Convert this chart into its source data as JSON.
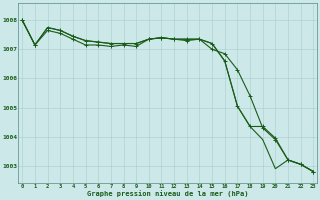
{
  "hours": [
    0,
    1,
    2,
    3,
    4,
    5,
    6,
    7,
    8,
    9,
    10,
    11,
    12,
    13,
    14,
    15,
    16,
    17,
    18,
    19,
    20,
    21,
    22,
    23
  ],
  "line1": [
    1008.0,
    1007.15,
    1007.65,
    1007.55,
    1007.35,
    1007.15,
    1007.15,
    1007.1,
    1007.15,
    1007.1,
    1007.35,
    1007.4,
    1007.35,
    1007.3,
    1007.35,
    1007.0,
    1006.85,
    1006.3,
    1005.4,
    1004.3,
    1003.9,
    1003.2,
    1003.05,
    1002.8
  ],
  "line2": [
    1008.0,
    1007.15,
    1007.75,
    1007.65,
    1007.45,
    1007.3,
    1007.25,
    1007.2,
    1007.2,
    1007.2,
    1007.35,
    1007.4,
    1007.35,
    1007.35,
    1007.35,
    1007.2,
    1006.6,
    1005.05,
    1004.35,
    1004.35,
    1003.95,
    1003.2,
    1003.05,
    1002.8
  ],
  "line3": [
    1008.0,
    1007.15,
    1007.75,
    1007.65,
    1007.45,
    1007.3,
    1007.25,
    1007.2,
    1007.2,
    1007.2,
    1007.35,
    1007.4,
    1007.35,
    1007.35,
    1007.35,
    1007.2,
    1006.6,
    1005.05,
    1004.35,
    1003.9,
    1002.9,
    1003.2,
    1003.05,
    1002.8
  ],
  "bg_color": "#cce8e8",
  "grid_color": "#aacccc",
  "line_color": "#1a5c1a",
  "ylabel_ticks": [
    1003,
    1004,
    1005,
    1006,
    1007,
    1008
  ],
  "xlabel": "Graphe pression niveau de la mer (hPa)",
  "ylim_min": 1002.4,
  "ylim_max": 1008.6,
  "xlim_min": -0.3,
  "xlim_max": 23.3
}
